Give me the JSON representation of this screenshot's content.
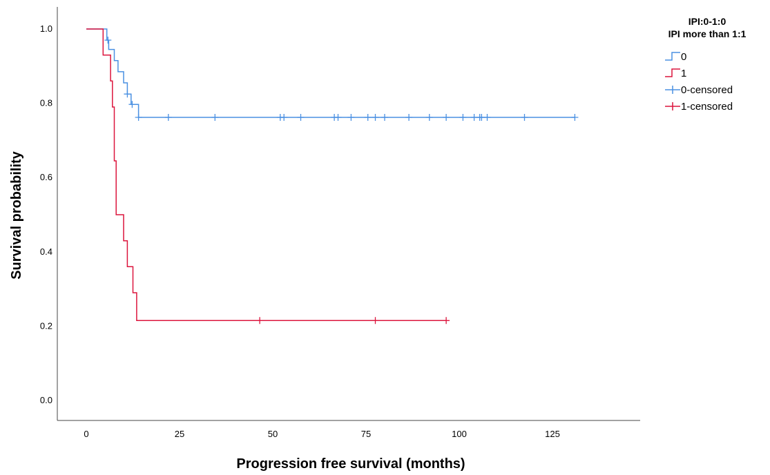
{
  "chart_data": {
    "type": "line",
    "subtype": "kaplan-meier step",
    "title": "",
    "xlabel": "Progression free survival (months)",
    "ylabel": "Survival probability",
    "xlim": [
      0,
      145
    ],
    "ylim": [
      0,
      1.0
    ],
    "xticks": [
      0,
      25,
      50,
      75,
      100,
      125
    ],
    "yticks": [
      0.0,
      0.2,
      0.4,
      0.6,
      0.8,
      1.0
    ],
    "xtick_labels": [
      "0",
      "25",
      "50",
      "75",
      "100",
      "125"
    ],
    "ytick_labels": [
      "0.0",
      "0.2",
      "0.4",
      "0.6",
      "0.8",
      "1.0"
    ],
    "grid": false,
    "legend": {
      "placement": "right",
      "title_lines": [
        "IPI:0-1:0",
        "IPI more than 1:1"
      ],
      "entries": [
        {
          "label": "0",
          "kind": "line",
          "color": "#4a90e2"
        },
        {
          "label": "1",
          "kind": "line",
          "color": "#dc143c"
        },
        {
          "label": "0-censored",
          "kind": "censor",
          "color": "#4a90e2"
        },
        {
          "label": "1-censored",
          "kind": "censor",
          "color": "#dc143c"
        }
      ]
    },
    "series": [
      {
        "name": "0",
        "color": "#4a90e2",
        "steps": [
          [
            0,
            1.0
          ],
          [
            5.5,
            0.97
          ],
          [
            6.0,
            0.945
          ],
          [
            7.5,
            0.915
          ],
          [
            8.5,
            0.885
          ],
          [
            10.0,
            0.855
          ],
          [
            11.0,
            0.825
          ],
          [
            12.0,
            0.797
          ],
          [
            14.0,
            0.762
          ]
        ],
        "end_x": 131,
        "censored_x": [
          5.8,
          11,
          12.3,
          14,
          22,
          34.5,
          52,
          53,
          57.5,
          66.5,
          67.5,
          71,
          75.5,
          77.5,
          80,
          86.5,
          92,
          96.5,
          101,
          104,
          105.5,
          106,
          107.5,
          117.5,
          131
        ]
      },
      {
        "name": "1",
        "color": "#dc143c",
        "steps": [
          [
            0,
            1.0
          ],
          [
            4.5,
            0.93
          ],
          [
            6.5,
            0.86
          ],
          [
            7.0,
            0.79
          ],
          [
            7.5,
            0.645
          ],
          [
            8.0,
            0.5
          ],
          [
            10.0,
            0.43
          ],
          [
            11.0,
            0.36
          ],
          [
            12.5,
            0.29
          ],
          [
            13.5,
            0.215
          ]
        ],
        "end_x": 96.5,
        "censored_x": [
          46.5,
          77.5,
          96.5
        ]
      }
    ]
  }
}
